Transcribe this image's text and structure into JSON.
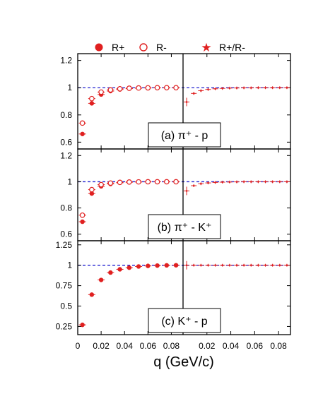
{
  "legend": {
    "placement": "top",
    "items": [
      {
        "label": "R+",
        "marker": "filled-circle"
      },
      {
        "label": "R-",
        "marker": "open-circle"
      },
      {
        "label": "R+/R-",
        "marker": "star"
      }
    ]
  },
  "xlabel": "q (GeV/c)",
  "colors": {
    "data": "#e02020",
    "reference": "#2020d0",
    "frame": "#000000"
  },
  "chart_data": [
    {
      "type": "scatter",
      "panel_label": "(a)  π⁺ - p",
      "ylim": [
        0.55,
        1.25
      ],
      "yticks": [
        0.6,
        0.8,
        1,
        1.2
      ],
      "ytick_labels": [
        "0.6",
        "0.8",
        "1",
        "1.2"
      ],
      "reference_line": 1,
      "left": {
        "xlim": [
          0,
          0.09
        ],
        "series": [
          {
            "name": "R+",
            "x": [
              0.004,
              0.012,
              0.02,
              0.028,
              0.036,
              0.044,
              0.052,
              0.06,
              0.068,
              0.076,
              0.084
            ],
            "values": [
              0.66,
              0.885,
              0.95,
              0.975,
              0.987,
              0.993,
              0.996,
              0.998,
              0.999,
              0.999,
              1.0
            ]
          },
          {
            "name": "R-",
            "x": [
              0.004,
              0.012,
              0.02,
              0.028,
              0.036,
              0.044,
              0.052,
              0.06,
              0.068,
              0.076,
              0.084
            ],
            "values": [
              0.74,
              0.92,
              0.968,
              0.984,
              0.992,
              0.996,
              0.998,
              0.999,
              1.0,
              1.0,
              1.0
            ]
          }
        ]
      },
      "right": {
        "xlim": [
          0,
          0.09
        ],
        "series": [
          {
            "name": "R+/R-",
            "x": [
              0.003,
              0.009,
              0.015,
              0.021,
              0.027,
              0.033,
              0.039,
              0.045,
              0.051,
              0.057,
              0.063,
              0.069,
              0.075,
              0.081,
              0.087
            ],
            "values": [
              0.895,
              0.958,
              0.978,
              0.987,
              0.992,
              0.995,
              0.997,
              0.998,
              0.999,
              0.999,
              1.0,
              1.0,
              1.0,
              1.0,
              1.0
            ]
          }
        ]
      }
    },
    {
      "type": "scatter",
      "panel_label": "(b)  π⁺ - K⁺",
      "ylim": [
        0.55,
        1.25
      ],
      "yticks": [
        0.6,
        0.8,
        1,
        1.2
      ],
      "ytick_labels": [
        "0.6",
        "0.8",
        "1",
        "1.2"
      ],
      "reference_line": 1,
      "left": {
        "xlim": [
          0,
          0.09
        ],
        "series": [
          {
            "name": "R+",
            "x": [
              0.004,
              0.012,
              0.02,
              0.028,
              0.036,
              0.044,
              0.052,
              0.06,
              0.068,
              0.076,
              0.084
            ],
            "values": [
              0.695,
              0.91,
              0.965,
              0.983,
              0.992,
              0.996,
              0.998,
              0.999,
              1.0,
              1.0,
              1.0
            ]
          },
          {
            "name": "R-",
            "x": [
              0.004,
              0.012,
              0.02,
              0.028,
              0.036,
              0.044,
              0.052,
              0.06,
              0.068,
              0.076,
              0.084
            ],
            "values": [
              0.745,
              0.94,
              0.978,
              0.99,
              0.995,
              0.998,
              0.999,
              1.0,
              1.0,
              1.0,
              1.0
            ]
          }
        ]
      },
      "right": {
        "xlim": [
          0,
          0.09
        ],
        "series": [
          {
            "name": "R+/R-",
            "x": [
              0.003,
              0.009,
              0.015,
              0.021,
              0.027,
              0.033,
              0.039,
              0.045,
              0.051,
              0.057,
              0.063,
              0.069,
              0.075,
              0.081,
              0.087
            ],
            "values": [
              0.93,
              0.97,
              0.985,
              0.991,
              0.995,
              0.997,
              0.998,
              0.999,
              1.0,
              1.0,
              1.0,
              1.0,
              1.0,
              1.0,
              1.0
            ]
          }
        ]
      }
    },
    {
      "type": "scatter",
      "panel_label": "(c)  K⁺ - p",
      "ylim": [
        0.15,
        1.3
      ],
      "yticks": [
        0.25,
        0.5,
        0.75,
        1,
        1.25
      ],
      "ytick_labels": [
        "0.25",
        "0.5",
        "0.75",
        "1",
        "1.25"
      ],
      "reference_line": 1,
      "left": {
        "xlim": [
          0,
          0.09
        ],
        "series": [
          {
            "name": "R+",
            "x": [
              0.004,
              0.012,
              0.02,
              0.028,
              0.036,
              0.044,
              0.052,
              0.06,
              0.068,
              0.076,
              0.084
            ],
            "values": [
              0.27,
              0.64,
              0.82,
              0.91,
              0.95,
              0.97,
              0.985,
              0.992,
              0.996,
              0.999,
              1.0
            ]
          }
        ]
      },
      "right": {
        "xlim": [
          0,
          0.09
        ],
        "series": [
          {
            "name": "R+/R-",
            "x": [
              0.003,
              0.009,
              0.015,
              0.021,
              0.027,
              0.033,
              0.039,
              0.045,
              0.051,
              0.057,
              0.063,
              0.069,
              0.075,
              0.081,
              0.087
            ],
            "values": [
              1.0,
              1.0,
              1.0,
              1.0,
              1.0,
              1.0,
              1.0,
              1.0,
              1.0,
              1.0,
              1.0,
              1.0,
              1.0,
              1.0,
              1.0
            ]
          }
        ]
      }
    }
  ],
  "x_axis": {
    "ticks": [
      0,
      0.02,
      0.04,
      0.06,
      0.08
    ],
    "left_labels": [
      "0",
      "0.02",
      "0.04",
      "0.06",
      "0.08"
    ],
    "right_labels": [
      "0.02",
      "0.04",
      "0.06",
      "0.08"
    ]
  }
}
